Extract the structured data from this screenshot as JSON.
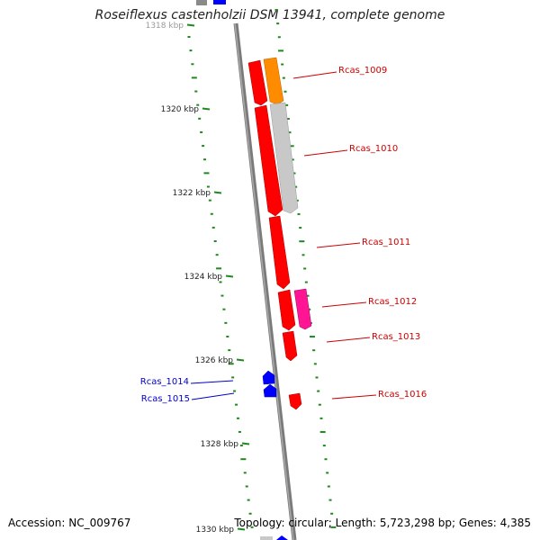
{
  "title": "Roseiflexus castenholzii DSM 13941, complete genome",
  "footer": {
    "accession": "Accession: NC_009767",
    "stats": "Topology: circular; Length: 5,723,298 bp; Genes: 4,385"
  },
  "colors": {
    "axis": "#7a7a7a",
    "tick": "#1e8a1e",
    "cds_red": "#ff0000",
    "cds_orange": "#ff8c00",
    "cds_gray": "#c8c8c8",
    "cds_magenta": "#ff1493",
    "cds_blue": "#0000ff",
    "label_red": "#cc0000",
    "label_blue": "#0000cc"
  },
  "ticks": [
    {
      "label": "1318 kbp",
      "faded": true
    },
    {
      "label": "1320 kbp"
    },
    {
      "label": "1322 kbp"
    },
    {
      "label": "1324 kbp"
    },
    {
      "label": "1326 kbp"
    },
    {
      "label": "1328 kbp"
    },
    {
      "label": "1330 kbp"
    }
  ],
  "gene_labels": [
    {
      "text": "Rcas_1009",
      "color": "red"
    },
    {
      "text": "Rcas_1010",
      "color": "red"
    },
    {
      "text": "Rcas_1011",
      "color": "red"
    },
    {
      "text": "Rcas_1012",
      "color": "red"
    },
    {
      "text": "Rcas_1013",
      "color": "red"
    },
    {
      "text": "Rcas_1016",
      "color": "red"
    },
    {
      "text": "Rcas_1014",
      "color": "blue"
    },
    {
      "text": "Rcas_1015",
      "color": "blue"
    }
  ]
}
